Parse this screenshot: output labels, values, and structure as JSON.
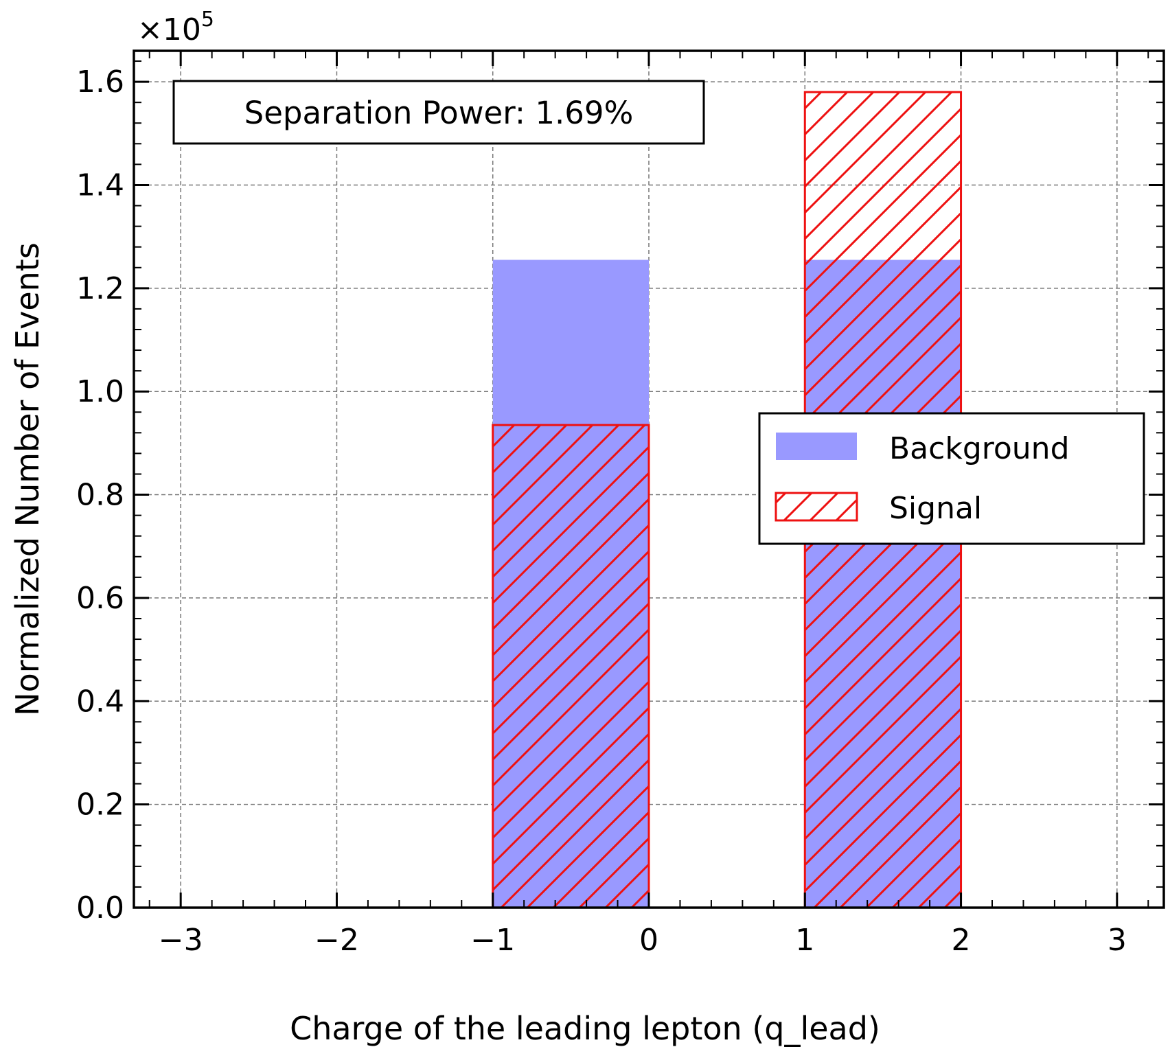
{
  "chart_data": {
    "type": "bar",
    "title": "",
    "xlabel": "Charge of the leading lepton (q_lead)",
    "ylabel": "Normalized Number of Events",
    "y_multiplier": "×10",
    "y_multiplier_exponent": "5",
    "xlim": [
      -3.3,
      3.3
    ],
    "ylim": [
      0,
      1.66
    ],
    "y_scale_factor": 100000,
    "xticks": [
      -3,
      -2,
      -1,
      0,
      1,
      2,
      3
    ],
    "xtick_labels": [
      "−3",
      "−2",
      "−1",
      "0",
      "1",
      "2",
      "3"
    ],
    "yticks": [
      0.0,
      0.2,
      0.4,
      0.6,
      0.8,
      1.0,
      1.2,
      1.4,
      1.6
    ],
    "ytick_labels": [
      "0.0",
      "0.2",
      "0.4",
      "0.6",
      "0.8",
      "1.0",
      "1.2",
      "1.4",
      "1.6"
    ],
    "grid": true,
    "legend_position": "center-right",
    "series": [
      {
        "name": "Background",
        "style": "filled",
        "color": "#9999ff",
        "bins": [
          {
            "x0": -1,
            "x1": 0,
            "value": 1.255
          },
          {
            "x0": 1,
            "x1": 2,
            "value": 1.255
          }
        ]
      },
      {
        "name": "Signal",
        "style": "hatched",
        "color": "#ee1111",
        "bins": [
          {
            "x0": -1,
            "x1": 0,
            "value": 0.935
          },
          {
            "x0": 1,
            "x1": 2,
            "value": 1.58
          }
        ]
      }
    ],
    "annotation": "Separation Power: 1.69%"
  }
}
